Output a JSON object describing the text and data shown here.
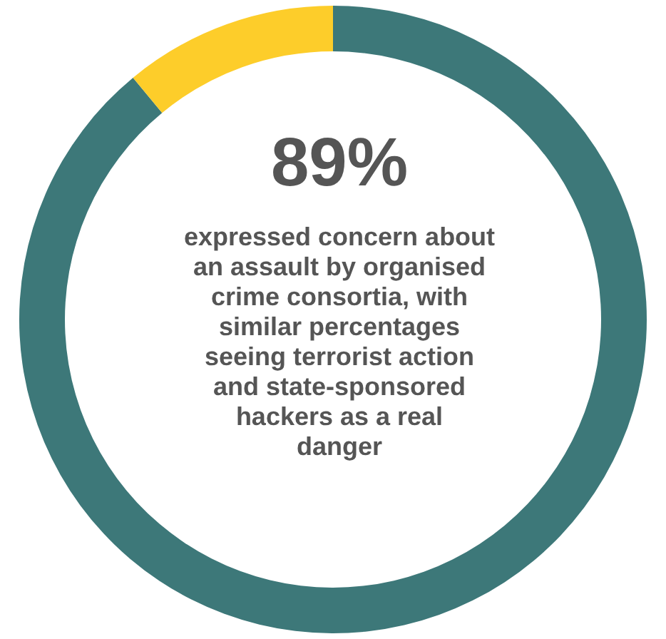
{
  "chart_data": {
    "type": "donut",
    "categories": [
      null,
      null
    ],
    "values": [
      89,
      11
    ],
    "colors": [
      "#3d7879",
      "#fdcd2a"
    ],
    "value_labels": [
      "89%",
      null
    ],
    "annotations": [
      "expressed concern about an assault by organised crime consortia, with similar percentages seeing terrorist action and state-sponsored hackers as a real danger"
    ],
    "legend": false
  }
}
